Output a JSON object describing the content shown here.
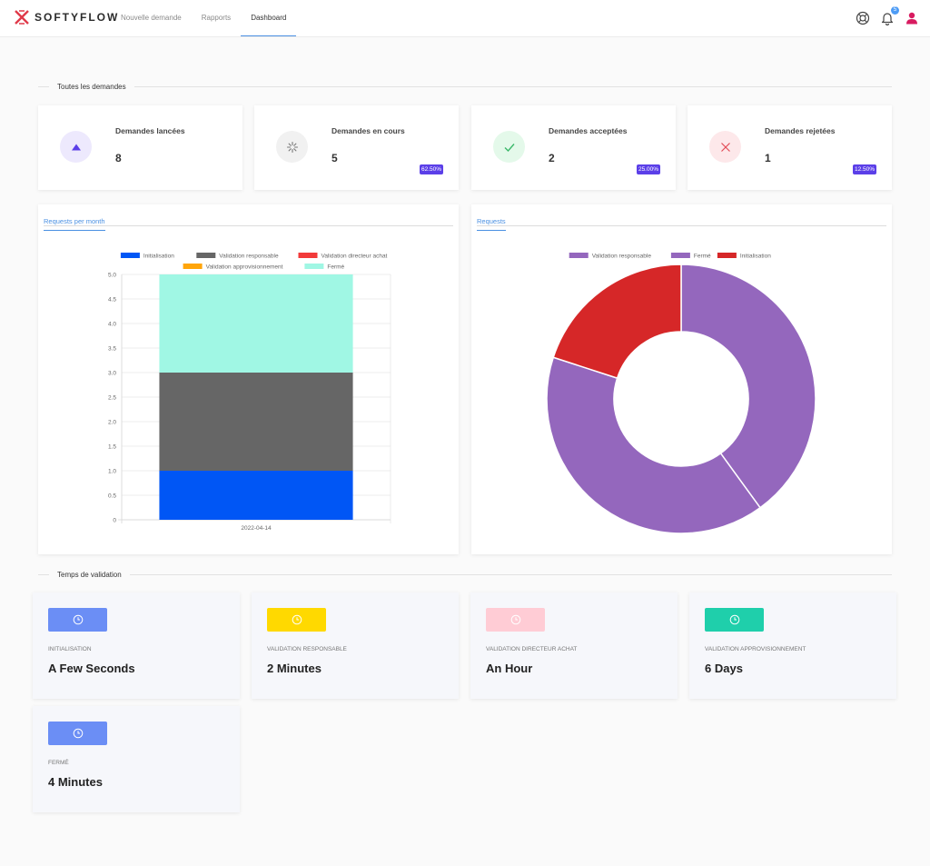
{
  "header": {
    "logo_text": "SOFTYFLOW",
    "nav": [
      {
        "label": "Nouvelle demande"
      },
      {
        "label": "Rapports"
      },
      {
        "label": "Dashboard"
      }
    ],
    "notification_count": "5"
  },
  "sections": {
    "all_requests": "Toutes les demandes",
    "validation_time": "Temps de validation"
  },
  "stats": [
    {
      "label": "Demandes lancées",
      "value": "8",
      "pct": "",
      "icon": "triangle-up-icon",
      "bg": "#ede9fd",
      "color": "#5b3fe8"
    },
    {
      "label": "Demandes en cours",
      "value": "5",
      "pct": "62.50%",
      "icon": "spinner-icon",
      "bg": "#f1f1f1",
      "color": "#777777"
    },
    {
      "label": "Demandes acceptées",
      "value": "2",
      "pct": "25.00%",
      "icon": "check-icon",
      "bg": "#e4f9ea",
      "color": "#3bb86a"
    },
    {
      "label": "Demandes rejetées",
      "value": "1",
      "pct": "12.50%",
      "icon": "close-icon",
      "bg": "#fde8ea",
      "color": "#e24a56"
    }
  ],
  "bar_chart_tab": "Requests per month",
  "donut_chart_tab": "Requests",
  "chart_data": [
    {
      "type": "bar",
      "stacked": true,
      "categories": [
        "2022-04-14"
      ],
      "series": [
        {
          "name": "Initialisation",
          "values": [
            1
          ],
          "color": "#0056f5"
        },
        {
          "name": "Validation responsable",
          "values": [
            2
          ],
          "color": "#666666"
        },
        {
          "name": "Validation directeur achat",
          "values": [
            0
          ],
          "color": "#f23a3a"
        },
        {
          "name": "Validation approvisionnement",
          "values": [
            0
          ],
          "color": "#ffa50a"
        },
        {
          "name": "Fermé",
          "values": [
            2
          ],
          "color": "#a0f7e4"
        }
      ],
      "ylim": [
        0,
        5
      ],
      "yticks": [
        "0",
        "0.5",
        "1.0",
        "1.5",
        "2.0",
        "2.5",
        "3.0",
        "3.5",
        "4.0",
        "4.5",
        "5.0"
      ],
      "grid": true,
      "legend": "top"
    },
    {
      "type": "pie",
      "donut": true,
      "slices": [
        {
          "name": "Validation responsable",
          "value": 2,
          "color": "#9467bd"
        },
        {
          "name": "Fermé",
          "value": 2,
          "color": "#9467bd"
        },
        {
          "name": "Initialisation",
          "value": 1,
          "color": "#d62728"
        }
      ],
      "legend": "top"
    }
  ],
  "validation_times": [
    {
      "label": "INITIALISATION",
      "value": "A Few Seconds",
      "color": "#6b8ef5"
    },
    {
      "label": "VALIDATION RESPONSABLE",
      "value": "2 Minutes",
      "color": "#ffd900"
    },
    {
      "label": "VALIDATION DIRECTEUR ACHAT",
      "value": "An Hour",
      "color": "#ffccd5"
    },
    {
      "label": "VALIDATION APPROVISIONNEMENT",
      "value": "6 Days",
      "color": "#1fcfab"
    },
    {
      "label": "FERMÉ",
      "value": "4 Minutes",
      "color": "#6b8ef5"
    }
  ]
}
